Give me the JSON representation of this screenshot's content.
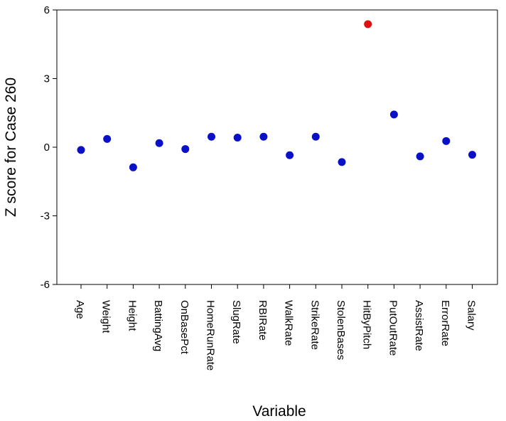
{
  "chart_data": {
    "type": "scatter",
    "title": "",
    "xlabel": "Variable",
    "ylabel": "Z score for Case 260",
    "ylim": [
      -6,
      6
    ],
    "yticks": [
      6,
      3,
      0,
      -3,
      -6
    ],
    "yticklabels": [
      "6",
      "3",
      "0",
      "-3",
      "-6"
    ],
    "grid": false,
    "categories": [
      "Age",
      "Weight",
      "Height",
      "BattingAvg",
      "OnBasePct",
      "HomeRunRate",
      "SlugRate",
      "RBIRate",
      "WalkRate",
      "StrikeRate",
      "StolenBases",
      "HitByPitch",
      "PutOutRate",
      "AssistRate",
      "ErrorRate",
      "Salary"
    ],
    "values": [
      -0.12,
      0.36,
      -0.88,
      0.18,
      -0.08,
      0.46,
      0.42,
      0.46,
      -0.35,
      0.46,
      -0.65,
      5.38,
      1.43,
      -0.4,
      0.27,
      -0.33
    ],
    "point_colors": [
      "#0a10c8",
      "#0a10c8",
      "#0a10c8",
      "#0a10c8",
      "#0a10c8",
      "#0a10c8",
      "#0a10c8",
      "#0a10c8",
      "#0a10c8",
      "#0a10c8",
      "#0a10c8",
      "#e01010",
      "#0a10c8",
      "#0a10c8",
      "#0a10c8",
      "#0a10c8"
    ],
    "colors": {
      "normal": "#0a10c8",
      "highlight": "#e01010",
      "axis": "#000000"
    }
  }
}
